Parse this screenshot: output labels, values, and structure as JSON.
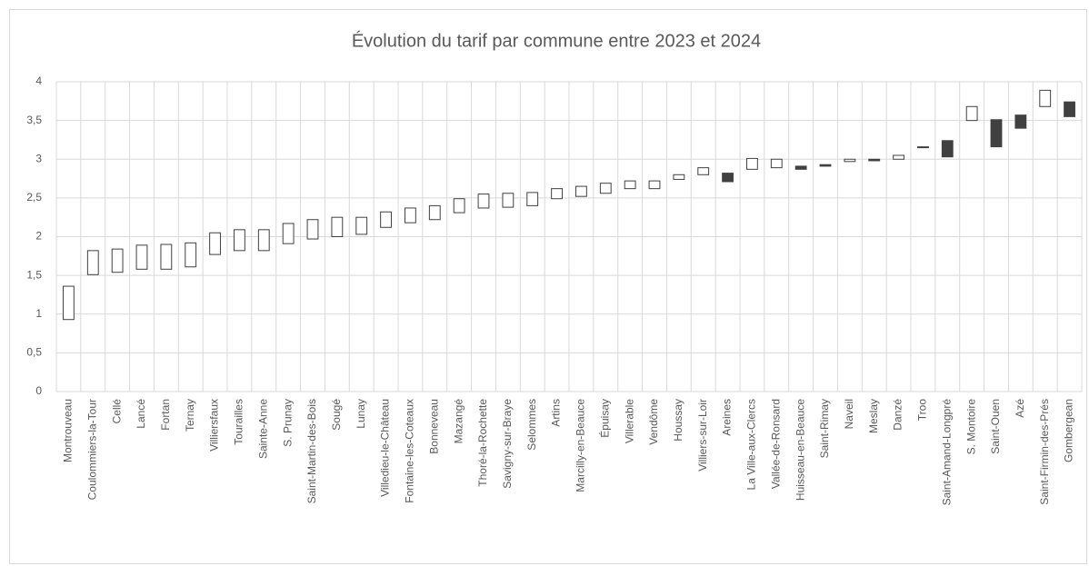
{
  "chart_data": {
    "type": "candlestick",
    "title": "Évolution du tarif par commune entre 2023 et 2024",
    "categories": [
      "Montrouveau",
      "Coulommiers-la-Tour",
      "Cellé",
      "Lancé",
      "Fortan",
      "Ternay",
      "Villiersfaux",
      "Tourailles",
      "Sainte-Anne",
      "S. Prunay",
      "Saint-Martin-des-Bois",
      "Sougé",
      "Lunay",
      "Villedieu-le-Château",
      "Fontaine-les-Coteaux",
      "Bonneveau",
      "Mazangé",
      "Thoré-la-Rochette",
      "Savigny-sur-Braye",
      "Selommes",
      "Artins",
      "Marcilly-en-Beauce",
      "Épuisay",
      "Villerable",
      "Vendôme",
      "Houssay",
      "Villiers-sur-Loir",
      "Areines",
      "La Ville-aux-Clercs",
      "Vallée-de-Ronsard",
      "Huisseau-en-Beauce",
      "Saint-Rimay",
      "Naveil",
      "Meslay",
      "Danzé",
      "Troo",
      "Saint-Amand-Longpré",
      "S. Montoire",
      "Saint-Ouen",
      "Azé",
      "Saint-Firmin-des-Prés",
      "Gombergean"
    ],
    "series": [
      {
        "values": [
          0.93,
          1.51,
          1.54,
          1.58,
          1.58,
          1.61,
          1.77,
          1.82,
          1.82,
          1.91,
          1.97,
          2.0,
          2.03,
          2.12,
          2.18,
          2.22,
          2.31,
          2.37,
          2.38,
          2.4,
          2.49,
          2.52,
          2.56,
          2.62,
          2.62,
          2.74,
          2.8,
          2.82,
          2.87,
          2.89,
          2.91,
          2.93,
          2.97,
          3.0,
          3.0,
          3.16,
          3.24,
          3.5,
          3.51,
          3.57,
          3.68,
          3.74
        ]
      },
      {
        "values": [
          1.36,
          1.82,
          1.84,
          1.89,
          1.9,
          1.92,
          2.05,
          2.09,
          2.09,
          2.17,
          2.22,
          2.25,
          2.25,
          2.32,
          2.37,
          2.4,
          2.49,
          2.55,
          2.56,
          2.57,
          2.62,
          2.65,
          2.69,
          2.72,
          2.72,
          2.8,
          2.89,
          2.71,
          3.01,
          3.0,
          2.87,
          2.91,
          3.0,
          2.98,
          3.05,
          3.15,
          3.03,
          3.68,
          3.16,
          3.4,
          3.89,
          3.55
        ]
      }
    ],
    "up_color": "#ffffff",
    "down_color": "#404040",
    "ylim": [
      0,
      4
    ],
    "yticks": [
      0,
      {
        "value": 0.5,
        "label": "0,5"
      },
      1,
      {
        "value": 1.5,
        "label": "1,5"
      },
      2,
      {
        "value": 2.5,
        "label": "2,5"
      },
      3,
      {
        "value": 3.5,
        "label": "3,5"
      },
      4
    ],
    "grid": true
  }
}
